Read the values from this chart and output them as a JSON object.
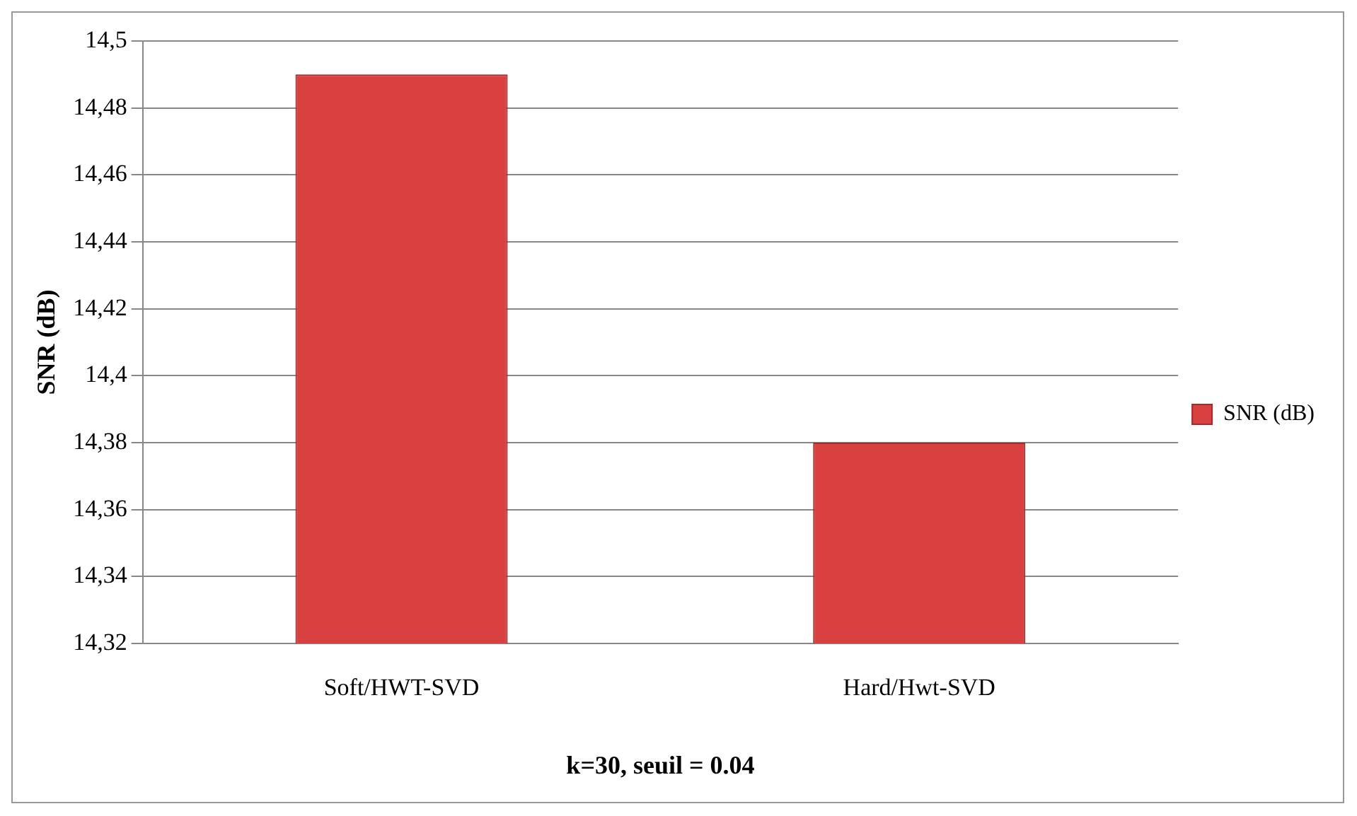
{
  "chart_data": {
    "type": "bar",
    "categories": [
      "Soft/HWT-SVD",
      "Hard/Hwt-SVD"
    ],
    "series": [
      {
        "name": "SNR (dB)",
        "color": "#d94141",
        "values": [
          14.49,
          14.38
        ]
      }
    ],
    "ylabel": "SNR (dB)",
    "xlabel": "k=30, seuil = 0.04",
    "ylim": [
      14.32,
      14.5
    ],
    "yticks": [
      {
        "value": 14.32,
        "label": "14,32"
      },
      {
        "value": 14.34,
        "label": "14,34"
      },
      {
        "value": 14.36,
        "label": "14,36"
      },
      {
        "value": 14.38,
        "label": "14,38"
      },
      {
        "value": 14.4,
        "label": "14,4"
      },
      {
        "value": 14.42,
        "label": "14,42"
      },
      {
        "value": 14.44,
        "label": "14,44"
      },
      {
        "value": 14.46,
        "label": "14,46"
      },
      {
        "value": 14.48,
        "label": "14,48"
      },
      {
        "value": 14.5,
        "label": "14,5"
      }
    ],
    "grid": "y",
    "legend": "right"
  }
}
